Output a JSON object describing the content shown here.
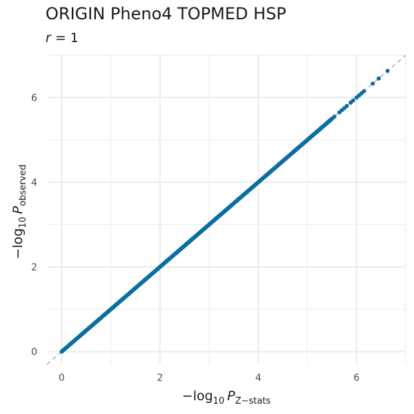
{
  "chart_data": {
    "type": "scatter",
    "title": "ORIGIN Pheno4 TOPMED HSP",
    "subtitle_var": "r",
    "subtitle_eq": " = 1",
    "xlabel": {
      "prefix": "−log",
      "sub": "10",
      "var": "P",
      "subscript": "Z−stats"
    },
    "ylabel": {
      "prefix": "−log",
      "sub": "10",
      "var": "P",
      "subscript": "observed"
    },
    "xlim": [
      -0.3,
      7.0
    ],
    "ylim": [
      -0.3,
      7.0
    ],
    "xticks": [
      0,
      2,
      4,
      6
    ],
    "yticks": [
      0,
      2,
      4,
      6
    ],
    "xtick_labels": [
      "0",
      "2",
      "4",
      "6"
    ],
    "ytick_labels": [
      "0",
      "2",
      "4",
      "6"
    ],
    "grid": true,
    "reference_line": "y = x (dashed, grey)",
    "line_range": [
      0,
      5.5
    ],
    "points": [
      [
        5.55,
        5.55
      ],
      [
        5.65,
        5.65
      ],
      [
        5.7,
        5.7
      ],
      [
        5.75,
        5.75
      ],
      [
        5.8,
        5.8
      ],
      [
        5.88,
        5.88
      ],
      [
        5.93,
        5.93
      ],
      [
        6.0,
        6.0
      ],
      [
        6.05,
        6.05
      ],
      [
        6.1,
        6.1
      ],
      [
        6.15,
        6.15
      ],
      [
        6.33,
        6.33
      ],
      [
        6.45,
        6.45
      ],
      [
        6.63,
        6.63
      ]
    ],
    "colors": {
      "points": "#0a6ea1",
      "reference": "#aaaaaa",
      "grid": "#ebebeb"
    }
  }
}
